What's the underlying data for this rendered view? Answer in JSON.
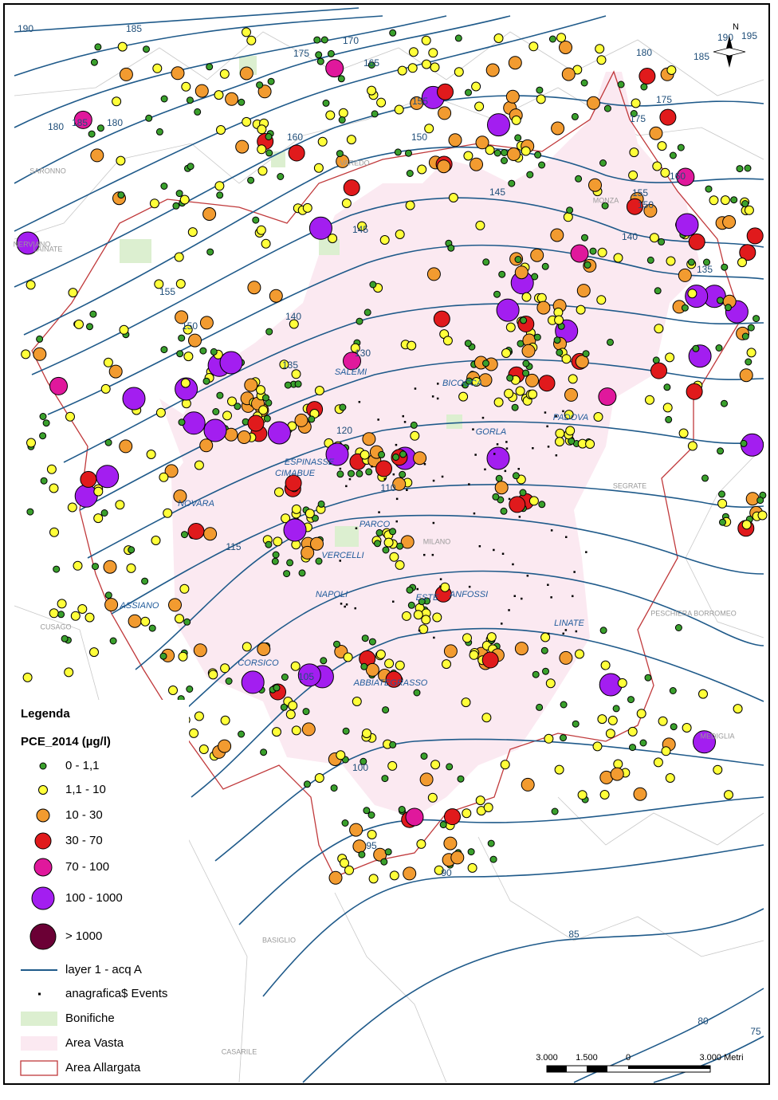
{
  "legend": {
    "title": "Legenda",
    "subtitle": "PCE_2014 (µg/l)",
    "classes": [
      "0 - 1,1",
      "1,1 - 10",
      "10 - 30",
      "30 - 70",
      "70 - 100",
      "100 - 1000",
      "> 1000"
    ],
    "layers": [
      "layer 1 - acq A",
      "anagrafica$ Events",
      "Bonifiche",
      "Area Vasta",
      "Area Allargata"
    ]
  },
  "map": {
    "north": "N",
    "contour_labels": [
      "190",
      "185",
      "180",
      "175",
      "170",
      "165",
      "155",
      "150",
      "145",
      "145",
      "140",
      "140",
      "135",
      "135",
      "130",
      "120",
      "110",
      "115",
      "105",
      "100",
      "95",
      "90",
      "85",
      "80",
      "75",
      "160",
      "180",
      "185",
      "175",
      "175",
      "160",
      "155",
      "150",
      "150",
      "155",
      "195",
      "190",
      "185",
      "180"
    ],
    "stations": [
      "SALEMI",
      "BICOCCA",
      "GORLA",
      "PADOVA",
      "ESPINASSE",
      "CIMABUE",
      "NOVARA",
      "PARCO",
      "VERCELLI",
      "NAPOLI",
      "ESTE",
      "ANFOSSI",
      "LINATE",
      "CORSICO",
      "ASSIANO",
      "ABBIATEGRASSO"
    ],
    "towns": [
      "SARONNO",
      "LAINATE",
      "NERVIANO",
      "VAREDO",
      "MONZA",
      "MILANO",
      "PESCHIERA BORROMEO",
      "SEGRATE",
      "CUSAGO",
      "BASIGLIO",
      "CASARILE",
      "MEDIGLIA"
    ]
  },
  "scale_bar": {
    "labels": [
      "3.000",
      "1.500",
      "0",
      "3.000 Metri"
    ]
  }
}
